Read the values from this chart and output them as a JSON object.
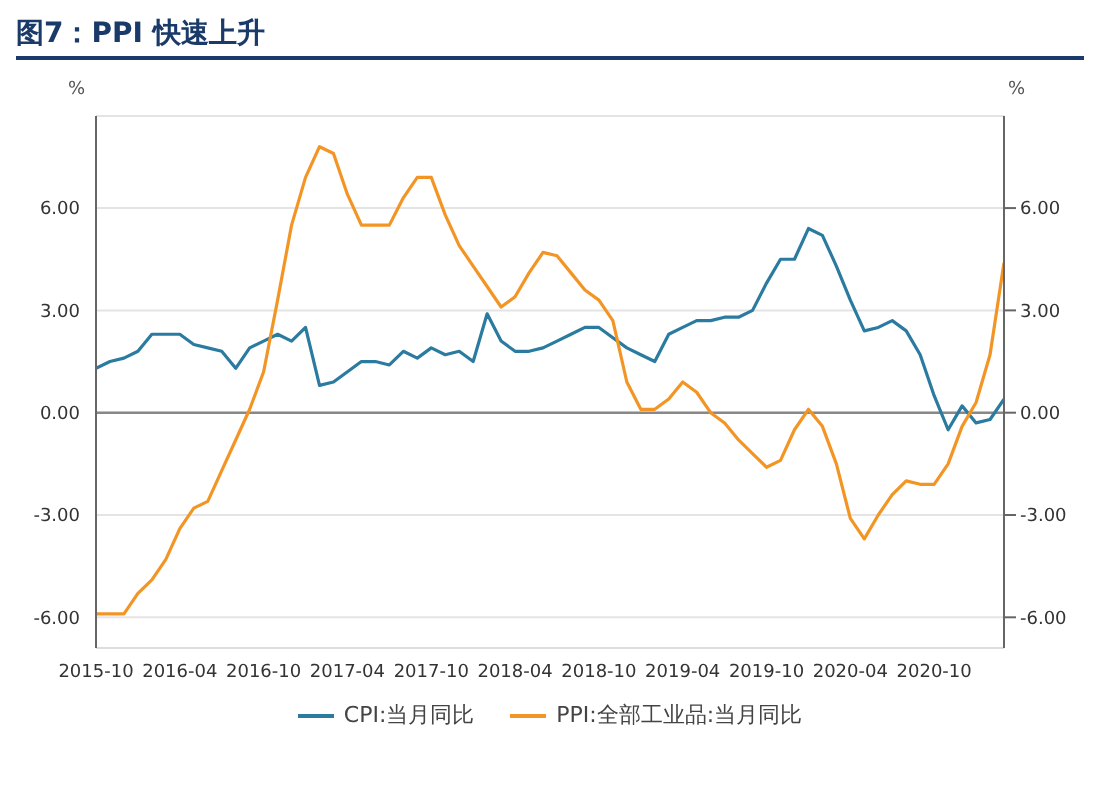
{
  "chart_data": {
    "type": "line",
    "title": "图7：PPI 快速上升",
    "x": [
      "2015-10",
      "2015-11",
      "2015-12",
      "2016-01",
      "2016-02",
      "2016-03",
      "2016-04",
      "2016-05",
      "2016-06",
      "2016-07",
      "2016-08",
      "2016-09",
      "2016-10",
      "2016-11",
      "2016-12",
      "2017-01",
      "2017-02",
      "2017-03",
      "2017-04",
      "2017-05",
      "2017-06",
      "2017-07",
      "2017-08",
      "2017-09",
      "2017-10",
      "2017-11",
      "2017-12",
      "2018-01",
      "2018-02",
      "2018-03",
      "2018-04",
      "2018-05",
      "2018-06",
      "2018-07",
      "2018-08",
      "2018-09",
      "2018-10",
      "2018-11",
      "2018-12",
      "2019-01",
      "2019-02",
      "2019-03",
      "2019-04",
      "2019-05",
      "2019-06",
      "2019-07",
      "2019-08",
      "2019-09",
      "2019-10",
      "2019-11",
      "2019-12",
      "2020-01",
      "2020-02",
      "2020-03",
      "2020-04",
      "2020-05",
      "2020-06",
      "2020-07",
      "2020-08",
      "2020-09",
      "2020-10",
      "2020-11",
      "2020-12",
      "2021-01",
      "2021-02",
      "2021-03"
    ],
    "series": [
      {
        "name": "CPI:当月同比",
        "color": "#2b7ba1",
        "values": [
          1.3,
          1.5,
          1.6,
          1.8,
          2.3,
          2.3,
          2.3,
          2.0,
          1.9,
          1.8,
          1.3,
          1.9,
          2.1,
          2.3,
          2.1,
          2.5,
          0.8,
          0.9,
          1.2,
          1.5,
          1.5,
          1.4,
          1.8,
          1.6,
          1.9,
          1.7,
          1.8,
          1.5,
          2.9,
          2.1,
          1.8,
          1.8,
          1.9,
          2.1,
          2.3,
          2.5,
          2.5,
          2.2,
          1.9,
          1.7,
          1.5,
          2.3,
          2.5,
          2.7,
          2.7,
          2.8,
          2.8,
          3.0,
          3.8,
          4.5,
          4.5,
          5.4,
          5.2,
          4.3,
          3.3,
          2.4,
          2.5,
          2.7,
          2.4,
          1.7,
          0.5,
          -0.5,
          0.2,
          -0.3,
          -0.2,
          0.4
        ]
      },
      {
        "name": "PPI:全部工业品:当月同比",
        "color": "#f39525",
        "values": [
          -5.9,
          -5.9,
          -5.9,
          -5.3,
          -4.9,
          -4.3,
          -3.4,
          -2.8,
          -2.6,
          -1.7,
          -0.8,
          0.1,
          1.2,
          3.3,
          5.5,
          6.9,
          7.8,
          7.6,
          6.4,
          5.5,
          5.5,
          5.5,
          6.3,
          6.9,
          6.9,
          5.8,
          4.9,
          4.3,
          3.7,
          3.1,
          3.4,
          4.1,
          4.7,
          4.6,
          4.1,
          3.6,
          3.3,
          2.7,
          0.9,
          0.1,
          0.1,
          0.4,
          0.9,
          0.6,
          0.0,
          -0.3,
          -0.8,
          -1.2,
          -1.6,
          -1.4,
          -0.5,
          0.1,
          -0.4,
          -1.5,
          -3.1,
          -3.7,
          -3.0,
          -2.4,
          -2.0,
          -2.1,
          -2.1,
          -1.5,
          -0.4,
          0.3,
          1.7,
          4.4
        ]
      }
    ],
    "xlim": [
      "2015-10",
      "2021-03"
    ],
    "xticks": [
      "2015-10",
      "2016-04",
      "2016-10",
      "2017-04",
      "2017-10",
      "2018-04",
      "2018-10",
      "2019-04",
      "2019-10",
      "2020-04",
      "2020-10"
    ],
    "ylim": [
      -6.9,
      8.7
    ],
    "yticks": [
      {
        "value": -6,
        "label": "-6.00"
      },
      {
        "value": -3,
        "label": "-3.00"
      },
      {
        "value": 0,
        "label": "0.00"
      },
      {
        "value": 3,
        "label": "3.00"
      },
      {
        "value": 6,
        "label": "6.00"
      }
    ],
    "y2lim": [
      -6.9,
      8.7
    ],
    "y2ticks": [
      {
        "value": -6,
        "label": "-6.00"
      },
      {
        "value": -3,
        "label": "-3.00"
      },
      {
        "value": 0,
        "label": "0.00"
      },
      {
        "value": 3,
        "label": "3.00"
      },
      {
        "value": 6,
        "label": "6.00"
      }
    ],
    "ylabel": "%",
    "y2label": "%",
    "grid": "y",
    "legend": "bottom",
    "marker": "none",
    "line_style": "solid"
  }
}
